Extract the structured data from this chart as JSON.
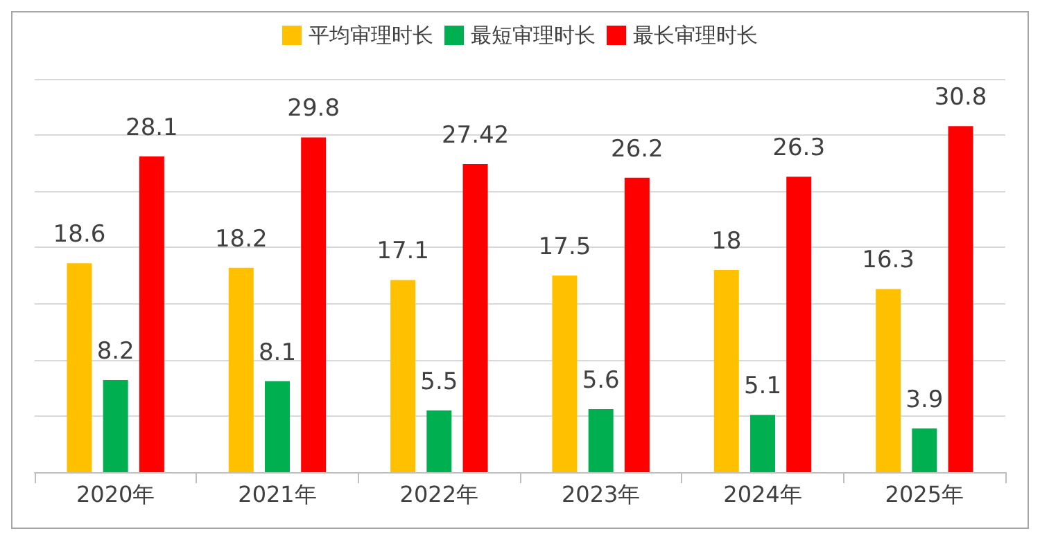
{
  "chart_data": {
    "type": "bar",
    "categories": [
      "2020年",
      "2021年",
      "2022年",
      "2023年",
      "2024年",
      "2025年"
    ],
    "series": [
      {
        "name": "平均审理时长",
        "color": "#ffc000",
        "values": [
          18.6,
          18.2,
          17.1,
          17.5,
          18,
          16.3
        ]
      },
      {
        "name": "最短审理时长",
        "color": "#00b050",
        "values": [
          8.2,
          8.1,
          5.5,
          5.6,
          5.1,
          3.9
        ]
      },
      {
        "name": "最长审理时长",
        "color": "#ff0000",
        "values": [
          28.1,
          29.8,
          27.42,
          26.2,
          26.3,
          30.8
        ]
      }
    ],
    "ylim": [
      0,
      35
    ],
    "yticks": [
      {
        "value": 0,
        "label": null
      },
      {
        "value": 5,
        "label": null
      },
      {
        "value": 10,
        "label": null
      },
      {
        "value": 15,
        "label": null
      },
      {
        "value": 20,
        "label": null
      },
      {
        "value": 25,
        "label": null
      },
      {
        "value": 30,
        "label": null
      },
      {
        "value": 35,
        "label": null
      }
    ],
    "grid": "y",
    "legend": "top",
    "data_labels": true,
    "tick_labels": "x"
  }
}
